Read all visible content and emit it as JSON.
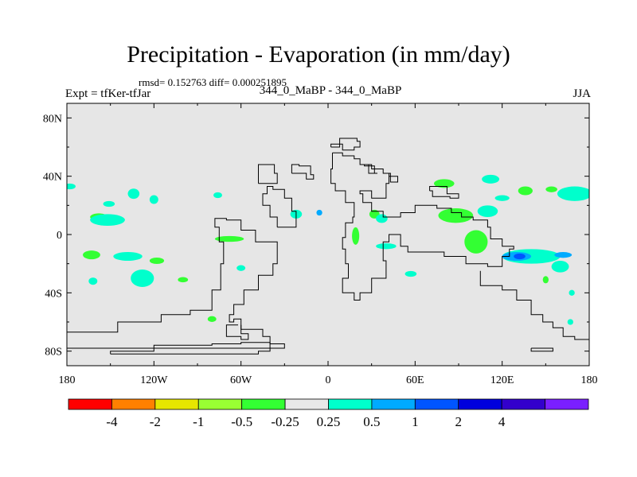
{
  "chart_data": {
    "type": "heatmap",
    "title": "Precipitation - Evaporation (in mm/day)",
    "stats_line": "rmsd= 0.152763  diff= 0.000251895",
    "left_label": "Expt = tfKer-tfJar",
    "center_label": "344_0_MaBP - 344_0_MaBP",
    "right_label": "JJA",
    "xlim": [
      -180,
      180
    ],
    "ylim": [
      -90,
      90
    ],
    "x_ticks": [
      {
        "value": -180,
        "label": "180"
      },
      {
        "value": -120,
        "label": "120W"
      },
      {
        "value": -60,
        "label": "60W"
      },
      {
        "value": 0,
        "label": "0"
      },
      {
        "value": 60,
        "label": "60E"
      },
      {
        "value": 120,
        "label": "120E"
      },
      {
        "value": 180,
        "label": "180"
      }
    ],
    "y_ticks": [
      {
        "value": 80,
        "label": "80N"
      },
      {
        "value": 40,
        "label": "40N"
      },
      {
        "value": 0,
        "label": "0"
      },
      {
        "value": -40,
        "label": "40S"
      },
      {
        "value": -80,
        "label": "80S"
      }
    ],
    "colorbar": {
      "colors": [
        "#ff0000",
        "#ff8000",
        "#e6e600",
        "#99ff33",
        "#33ff33",
        "#e8e8e8",
        "#00ffcc",
        "#00aaff",
        "#0055ff",
        "#0000dd",
        "#3300cc",
        "#7a1fff"
      ],
      "labels": [
        "-4",
        "-2",
        "-1",
        "-0.5",
        "-0.25",
        "0.25",
        "0.5",
        "1",
        "2",
        "4"
      ]
    },
    "background_color": "#e6e6e6",
    "anomaly_regions": [
      {
        "category": "-0.5",
        "color": "#33ff33",
        "lon": -158,
        "lat": 12,
        "rx": 6,
        "ry": 2.5
      },
      {
        "category": "-0.5",
        "color": "#33ff33",
        "lon": -163,
        "lat": -14,
        "rx": 6,
        "ry": 3
      },
      {
        "category": "-0.5",
        "color": "#33ff33",
        "lon": -68,
        "lat": -3,
        "rx": 10,
        "ry": 2
      },
      {
        "category": "-0.5",
        "color": "#33ff33",
        "lon": -118,
        "lat": -18,
        "rx": 5,
        "ry": 2.2
      },
      {
        "category": "-0.5",
        "color": "#33ff33",
        "lon": -100,
        "lat": -31,
        "rx": 3.5,
        "ry": 1.8
      },
      {
        "category": "-0.5",
        "color": "#33ff33",
        "lon": -80,
        "lat": -58,
        "rx": 3,
        "ry": 2
      },
      {
        "category": "-0.5",
        "color": "#33ff33",
        "lon": 19,
        "lat": -1,
        "rx": 2.5,
        "ry": 6
      },
      {
        "category": "-0.5",
        "color": "#33ff33",
        "lon": 32,
        "lat": 14,
        "rx": 3.5,
        "ry": 3
      },
      {
        "category": "-0.5",
        "color": "#33ff33",
        "lon": 80,
        "lat": 35,
        "rx": 7,
        "ry": 3
      },
      {
        "category": "-0.5",
        "color": "#33ff33",
        "lon": 88,
        "lat": 13,
        "rx": 12,
        "ry": 5
      },
      {
        "category": "-0.5",
        "color": "#33ff33",
        "lon": 102,
        "lat": -5,
        "rx": 8,
        "ry": 8
      },
      {
        "category": "-0.5",
        "color": "#33ff33",
        "lon": 136,
        "lat": 30,
        "rx": 5,
        "ry": 3
      },
      {
        "category": "-0.5",
        "color": "#33ff33",
        "lon": 154,
        "lat": 31,
        "rx": 4,
        "ry": 2
      },
      {
        "category": "-0.5",
        "color": "#33ff33",
        "lon": 84,
        "lat": 13,
        "rx": 4,
        "ry": 2
      },
      {
        "category": "-0.5",
        "color": "#33ff33",
        "lon": 150,
        "lat": -31,
        "rx": 2,
        "ry": 2.5
      },
      {
        "category": "0.25",
        "color": "#00ffcc",
        "lon": -178,
        "lat": 33,
        "rx": 4,
        "ry": 2
      },
      {
        "category": "0.25",
        "color": "#00ffcc",
        "lon": -151,
        "lat": 21,
        "rx": 4,
        "ry": 2
      },
      {
        "category": "0.25",
        "color": "#00ffcc",
        "lon": -134,
        "lat": 28,
        "rx": 4,
        "ry": 3.5
      },
      {
        "category": "0.25",
        "color": "#00ffcc",
        "lon": -120,
        "lat": 24,
        "rx": 3,
        "ry": 3
      },
      {
        "category": "0.25",
        "color": "#00ffcc",
        "lon": -152,
        "lat": 10,
        "rx": 12,
        "ry": 4
      },
      {
        "category": "0.25",
        "color": "#00ffcc",
        "lon": -138,
        "lat": -15,
        "rx": 10,
        "ry": 3
      },
      {
        "category": "0.25",
        "color": "#00ffcc",
        "lon": -128,
        "lat": -30,
        "rx": 8,
        "ry": 6
      },
      {
        "category": "0.25",
        "color": "#00ffcc",
        "lon": -162,
        "lat": -32,
        "rx": 3,
        "ry": 2.5
      },
      {
        "category": "0.25",
        "color": "#00ffcc",
        "lon": -60,
        "lat": -23,
        "rx": 3,
        "ry": 2
      },
      {
        "category": "0.25",
        "color": "#00ffcc",
        "lon": -76,
        "lat": 27,
        "rx": 3,
        "ry": 2
      },
      {
        "category": "0.25",
        "color": "#00ffcc",
        "lon": -22,
        "lat": 14,
        "rx": 4,
        "ry": 3
      },
      {
        "category": "0.25",
        "color": "#00ffcc",
        "lon": 37,
        "lat": 11,
        "rx": 4,
        "ry": 3
      },
      {
        "category": "0.25",
        "color": "#00ffcc",
        "lon": 40,
        "lat": -8,
        "rx": 7,
        "ry": 2
      },
      {
        "category": "0.25",
        "color": "#00ffcc",
        "lon": 57,
        "lat": -27,
        "rx": 4,
        "ry": 2
      },
      {
        "category": "0.25",
        "color": "#00ffcc",
        "lon": 110,
        "lat": 16,
        "rx": 7,
        "ry": 4
      },
      {
        "category": "0.25",
        "color": "#00ffcc",
        "lon": 140,
        "lat": -15,
        "rx": 20,
        "ry": 5
      },
      {
        "category": "0.25",
        "color": "#00ffcc",
        "lon": 170,
        "lat": 28,
        "rx": 12,
        "ry": 5
      },
      {
        "category": "0.25",
        "color": "#00ffcc",
        "lon": 160,
        "lat": -22,
        "rx": 6,
        "ry": 4
      },
      {
        "category": "0.25",
        "color": "#00ffcc",
        "lon": 112,
        "lat": 38,
        "rx": 6,
        "ry": 3
      },
      {
        "category": "0.25",
        "color": "#00ffcc",
        "lon": 120,
        "lat": 25,
        "rx": 5,
        "ry": 2
      },
      {
        "category": "0.25",
        "color": "#00ffcc",
        "lon": 168,
        "lat": -40,
        "rx": 2,
        "ry": 2
      },
      {
        "category": "0.25",
        "color": "#00ffcc",
        "lon": 167,
        "lat": -60,
        "rx": 2,
        "ry": 2
      },
      {
        "category": "0.5",
        "color": "#00aaff",
        "lon": -6,
        "lat": 15,
        "rx": 2,
        "ry": 2
      },
      {
        "category": "0.5",
        "color": "#00aaff",
        "lon": 130,
        "lat": -15,
        "rx": 10,
        "ry": 3
      },
      {
        "category": "0.5",
        "color": "#00aaff",
        "lon": 162,
        "lat": -14,
        "rx": 6,
        "ry": 2
      },
      {
        "category": "1",
        "color": "#0055ff",
        "lon": 132,
        "lat": -15,
        "rx": 4,
        "ry": 2
      }
    ],
    "coastlines": [
      [
        [
          -180,
          -72
        ],
        [
          -145,
          -67
        ],
        [
          -115,
          -60
        ],
        [
          -95,
          -55
        ],
        [
          -80,
          -52
        ],
        [
          -74,
          -38
        ],
        [
          -72,
          -20
        ],
        [
          -75,
          -5
        ],
        [
          -78,
          5
        ],
        [
          -70,
          11
        ],
        [
          -60,
          10
        ],
        [
          -50,
          3
        ],
        [
          -35,
          -5
        ],
        [
          -38,
          -20
        ],
        [
          -48,
          -28
        ],
        [
          -58,
          -38
        ],
        [
          -65,
          -48
        ],
        [
          -68,
          -55
        ],
        [
          -65,
          -60
        ],
        [
          -60,
          -58
        ],
        [
          -45,
          -65
        ],
        [
          -40,
          -70
        ],
        [
          -30,
          -75
        ],
        [
          -180,
          -78
        ]
      ],
      [
        [
          -150,
          -82
        ],
        [
          -120,
          -80
        ],
        [
          -80,
          -76
        ],
        [
          -60,
          -75
        ],
        [
          -40,
          -74
        ],
        [
          -48,
          -80
        ],
        [
          -150,
          -82
        ]
      ],
      [
        [
          -60,
          -62
        ],
        [
          -55,
          -68
        ],
        [
          -60,
          -72
        ],
        [
          -70,
          -70
        ],
        [
          -62,
          -62
        ]
      ],
      [
        [
          -35,
          5
        ],
        [
          -40,
          12
        ],
        [
          -45,
          20
        ],
        [
          -42,
          28
        ],
        [
          -38,
          33
        ],
        [
          -30,
          31
        ],
        [
          -25,
          25
        ],
        [
          -22,
          16
        ],
        [
          -25,
          5
        ],
        [
          -35,
          5
        ]
      ],
      [
        [
          -48,
          35
        ],
        [
          -45,
          48
        ],
        [
          -37,
          48
        ],
        [
          -35,
          42
        ],
        [
          -40,
          35
        ],
        [
          -48,
          35
        ]
      ],
      [
        [
          -25,
          42
        ],
        [
          -20,
          48
        ],
        [
          -12,
          47
        ],
        [
          -10,
          41
        ],
        [
          -15,
          38
        ],
        [
          -25,
          42
        ]
      ],
      [
        [
          3,
          56
        ],
        [
          2,
          45
        ],
        [
          5,
          35
        ],
        [
          12,
          30
        ],
        [
          18,
          22
        ],
        [
          17,
          12
        ],
        [
          12,
          8
        ],
        [
          10,
          -2
        ],
        [
          12,
          -10
        ],
        [
          14,
          -20
        ],
        [
          10,
          -30
        ],
        [
          18,
          -40
        ],
        [
          22,
          -45
        ],
        [
          30,
          -40
        ],
        [
          40,
          -30
        ],
        [
          38,
          -18
        ],
        [
          42,
          -5
        ],
        [
          50,
          0
        ],
        [
          55,
          -8
        ],
        [
          58,
          -12
        ],
        [
          80,
          -12
        ],
        [
          95,
          -15
        ],
        [
          110,
          -20
        ],
        [
          120,
          -22
        ],
        [
          125,
          -15
        ],
        [
          128,
          -10
        ],
        [
          120,
          -8
        ],
        [
          112,
          -3
        ],
        [
          110,
          5
        ],
        [
          100,
          10
        ],
        [
          92,
          12
        ],
        [
          85,
          15
        ],
        [
          75,
          18
        ],
        [
          60,
          20
        ],
        [
          50,
          15
        ],
        [
          38,
          12
        ],
        [
          30,
          16
        ],
        [
          24,
          22
        ],
        [
          22,
          28
        ],
        [
          30,
          30
        ],
        [
          40,
          25
        ],
        [
          42,
          35
        ],
        [
          38,
          42
        ],
        [
          30,
          45
        ],
        [
          22,
          48
        ],
        [
          18,
          52
        ],
        [
          10,
          54
        ],
        [
          3,
          56
        ]
      ],
      [
        [
          105,
          -25
        ],
        [
          120,
          -35
        ],
        [
          130,
          -38
        ],
        [
          140,
          -45
        ],
        [
          148,
          -55
        ],
        [
          155,
          -60
        ],
        [
          162,
          -64
        ],
        [
          170,
          -70
        ],
        [
          180,
          -72
        ]
      ],
      [
        [
          2,
          60
        ],
        [
          10,
          62
        ],
        [
          18,
          58
        ],
        [
          22,
          60
        ],
        [
          20,
          64
        ],
        [
          8,
          66
        ],
        [
          2,
          60
        ]
      ],
      [
        [
          25,
          48
        ],
        [
          32,
          47
        ],
        [
          34,
          42
        ],
        [
          28,
          42
        ],
        [
          25,
          48
        ]
      ],
      [
        [
          42,
          42
        ],
        [
          48,
          40
        ],
        [
          47,
          36
        ],
        [
          43,
          36
        ],
        [
          42,
          42
        ]
      ],
      [
        [
          70,
          30
        ],
        [
          82,
          33
        ],
        [
          90,
          28
        ],
        [
          84,
          25
        ],
        [
          72,
          26
        ],
        [
          70,
          30
        ]
      ],
      [
        [
          140,
          -78
        ],
        [
          155,
          -78
        ],
        [
          152,
          -80
        ],
        [
          140,
          -80
        ],
        [
          140,
          -78
        ]
      ]
    ]
  }
}
